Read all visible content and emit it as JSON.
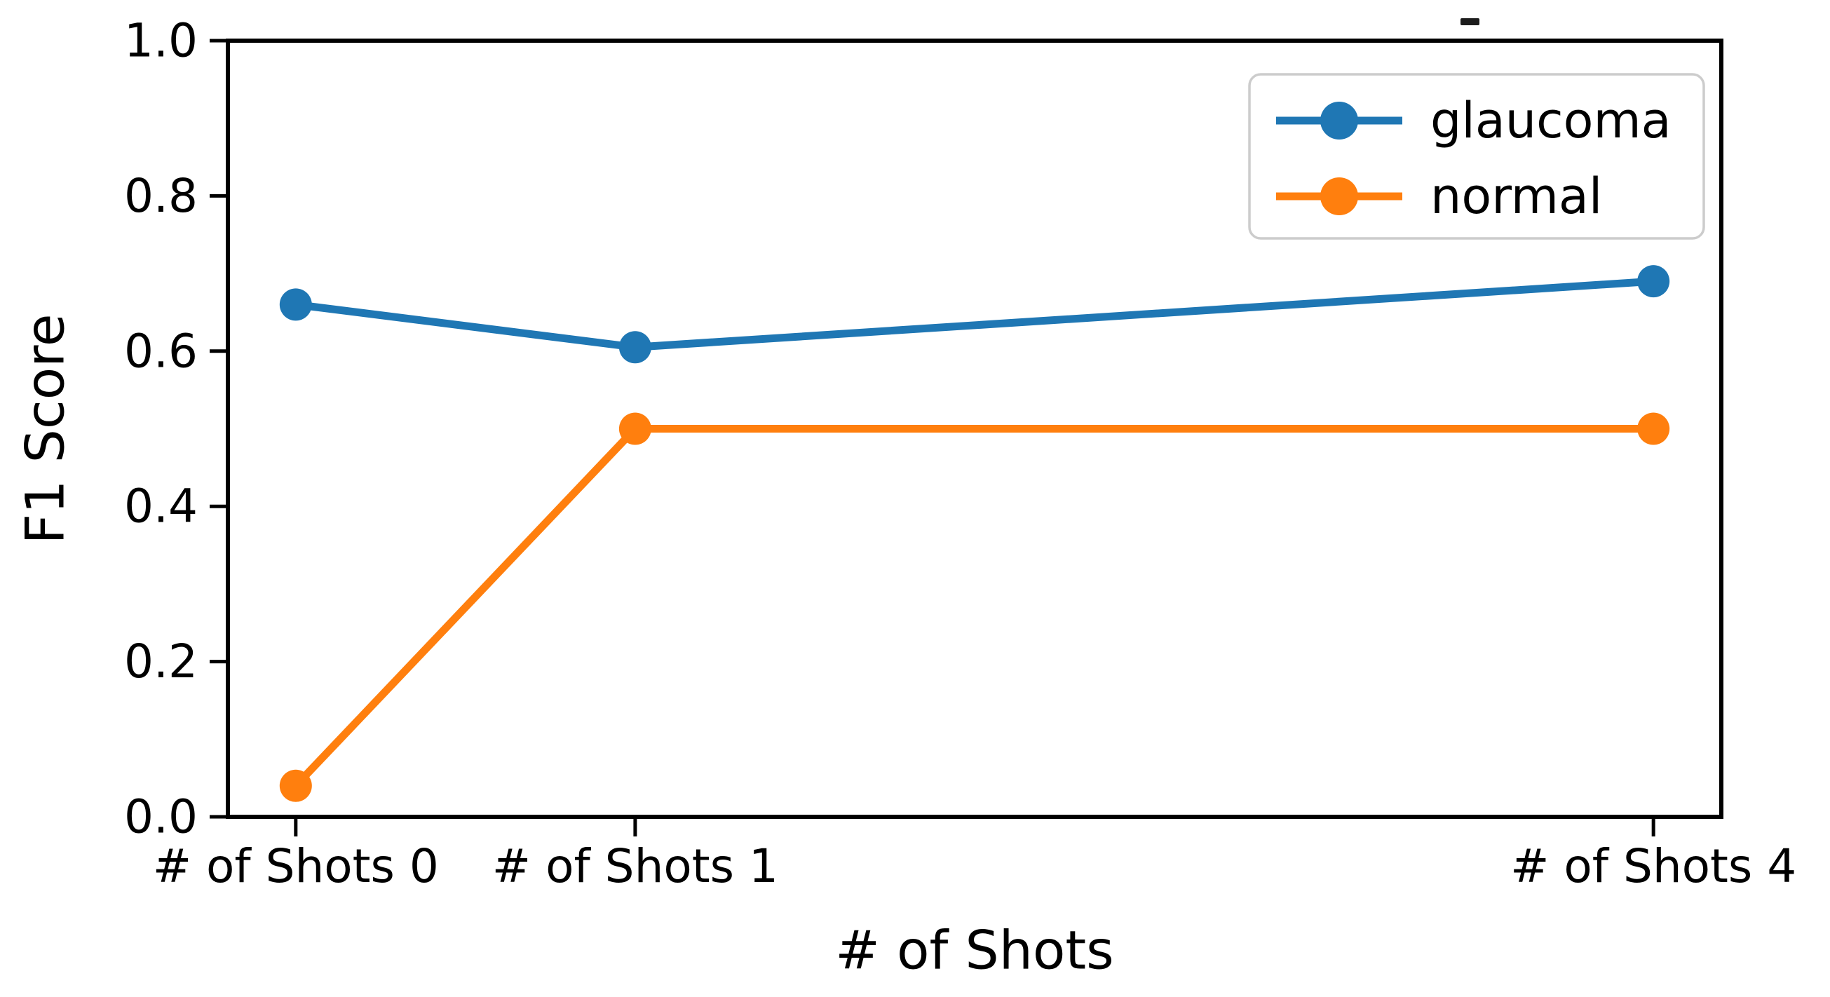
{
  "figure": {
    "background": "#ffffff",
    "has_stray_mark_above_plot": true
  },
  "chart_data": {
    "type": "line",
    "title": "",
    "xlabel": "# of Shots",
    "ylabel": "F1 Score",
    "x": [
      0,
      1,
      4
    ],
    "x_tick_labels": [
      "# of Shots 0",
      "# of Shots 1",
      "# of Shots 4"
    ],
    "xlim": [
      -0.2,
      4.2
    ],
    "ylim": [
      0.0,
      1.0
    ],
    "yticks": [
      0.0,
      0.2,
      0.4,
      0.6,
      0.8,
      1.0
    ],
    "ytick_labels": [
      "0.0",
      "0.2",
      "0.4",
      "0.6",
      "0.8",
      "1.0"
    ],
    "grid": false,
    "marker": "circle",
    "axis_color": "#000000",
    "series": [
      {
        "name": "glaucoma",
        "color": "#1f77b4",
        "values": [
          0.66,
          0.605,
          0.69
        ]
      },
      {
        "name": "normal",
        "color": "#ff7f0e",
        "values": [
          0.04,
          0.5,
          0.5
        ]
      }
    ],
    "legend": {
      "position": "upper right",
      "border_color": "#cccccc",
      "background": "#ffffff",
      "entries": [
        "glaucoma",
        "normal"
      ]
    }
  }
}
